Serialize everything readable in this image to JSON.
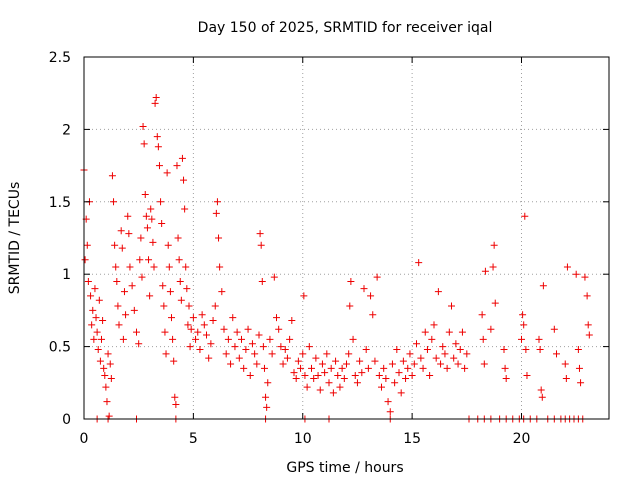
{
  "chart_data": {
    "type": "scatter",
    "title": "Day 150 of 2025, SRMTID for receiver iqal",
    "xlabel": "GPS time / hours",
    "ylabel": "SRMTID / TECUs",
    "xlim": [
      0,
      24
    ],
    "ylim": [
      0,
      2.5
    ],
    "x_ticks": [
      0,
      5,
      10,
      15,
      20
    ],
    "y_ticks": [
      0,
      0.5,
      1,
      1.5,
      2,
      2.5
    ],
    "x_tick_labels": [
      "0",
      "5",
      "10",
      "15",
      "20"
    ],
    "y_tick_labels": [
      "0",
      "0.5",
      "1",
      "1.5",
      "2",
      "2.5"
    ],
    "grid": true,
    "marker": "+",
    "color": "#ee0000",
    "series": [
      {
        "name": "SRMTID",
        "points": [
          [
            0.0,
            1.72
          ],
          [
            0.05,
            1.1
          ],
          [
            0.1,
            1.38
          ],
          [
            0.15,
            1.2
          ],
          [
            0.2,
            0.95
          ],
          [
            0.25,
            1.5
          ],
          [
            0.3,
            0.85
          ],
          [
            0.35,
            0.65
          ],
          [
            0.4,
            0.75
          ],
          [
            0.45,
            0.55
          ],
          [
            0.5,
            0.9
          ],
          [
            0.55,
            0.7
          ],
          [
            0.6,
            0.6
          ],
          [
            0.65,
            0.48
          ],
          [
            0.7,
            0.82
          ],
          [
            0.75,
            0.4
          ],
          [
            0.8,
            0.55
          ],
          [
            0.85,
            0.68
          ],
          [
            0.9,
            0.35
          ],
          [
            0.95,
            0.3
          ],
          [
            1.0,
            0.22
          ],
          [
            1.05,
            0.12
          ],
          [
            1.1,
            0.45
          ],
          [
            1.15,
            0.02
          ],
          [
            1.2,
            0.38
          ],
          [
            1.25,
            0.28
          ],
          [
            1.3,
            1.68
          ],
          [
            1.35,
            1.5
          ],
          [
            1.4,
            1.2
          ],
          [
            1.45,
            1.05
          ],
          [
            1.5,
            0.95
          ],
          [
            1.55,
            0.78
          ],
          [
            1.6,
            0.65
          ],
          [
            1.7,
            1.3
          ],
          [
            1.75,
            1.18
          ],
          [
            1.8,
            0.55
          ],
          [
            1.85,
            0.88
          ],
          [
            1.9,
            0.72
          ],
          [
            2.0,
            1.4
          ],
          [
            2.05,
            1.28
          ],
          [
            2.1,
            1.05
          ],
          [
            2.2,
            0.92
          ],
          [
            2.3,
            0.75
          ],
          [
            2.4,
            0.6
          ],
          [
            2.5,
            0.52
          ],
          [
            2.55,
            1.1
          ],
          [
            2.6,
            1.25
          ],
          [
            2.65,
            0.98
          ],
          [
            2.7,
            2.02
          ],
          [
            2.75,
            1.9
          ],
          [
            2.8,
            1.55
          ],
          [
            2.85,
            1.4
          ],
          [
            2.9,
            1.32
          ],
          [
            2.95,
            1.1
          ],
          [
            3.0,
            0.85
          ],
          [
            3.05,
            1.45
          ],
          [
            3.1,
            1.38
          ],
          [
            3.15,
            1.22
          ],
          [
            3.2,
            1.05
          ],
          [
            3.25,
            2.18
          ],
          [
            3.3,
            2.22
          ],
          [
            3.35,
            1.95
          ],
          [
            3.4,
            1.88
          ],
          [
            3.45,
            1.75
          ],
          [
            3.5,
            1.5
          ],
          [
            3.55,
            1.35
          ],
          [
            3.6,
            0.92
          ],
          [
            3.65,
            0.78
          ],
          [
            3.7,
            0.6
          ],
          [
            3.75,
            0.45
          ],
          [
            3.8,
            1.7
          ],
          [
            3.85,
            1.2
          ],
          [
            3.9,
            1.05
          ],
          [
            3.95,
            0.88
          ],
          [
            4.0,
            0.7
          ],
          [
            4.05,
            0.55
          ],
          [
            4.1,
            0.4
          ],
          [
            4.15,
            0.15
          ],
          [
            4.2,
            0.1
          ],
          [
            4.25,
            1.75
          ],
          [
            4.3,
            1.25
          ],
          [
            4.35,
            1.1
          ],
          [
            4.4,
            0.95
          ],
          [
            4.45,
            0.82
          ],
          [
            4.5,
            1.8
          ],
          [
            4.55,
            1.65
          ],
          [
            4.6,
            1.45
          ],
          [
            4.65,
            1.05
          ],
          [
            4.7,
            0.9
          ],
          [
            4.75,
            0.65
          ],
          [
            4.8,
            0.78
          ],
          [
            4.85,
            0.5
          ],
          [
            4.9,
            0.62
          ],
          [
            5.0,
            0.7
          ],
          [
            5.1,
            0.55
          ],
          [
            5.2,
            0.6
          ],
          [
            5.3,
            0.48
          ],
          [
            5.4,
            0.72
          ],
          [
            5.5,
            0.65
          ],
          [
            5.6,
            0.58
          ],
          [
            5.7,
            0.42
          ],
          [
            5.8,
            0.52
          ],
          [
            5.9,
            0.68
          ],
          [
            6.0,
            0.78
          ],
          [
            6.05,
            1.42
          ],
          [
            6.1,
            1.5
          ],
          [
            6.15,
            1.25
          ],
          [
            6.2,
            1.05
          ],
          [
            6.3,
            0.88
          ],
          [
            6.4,
            0.62
          ],
          [
            6.5,
            0.45
          ],
          [
            6.6,
            0.55
          ],
          [
            6.7,
            0.38
          ],
          [
            6.8,
            0.7
          ],
          [
            6.9,
            0.5
          ],
          [
            7.0,
            0.6
          ],
          [
            7.1,
            0.42
          ],
          [
            7.2,
            0.55
          ],
          [
            7.3,
            0.35
          ],
          [
            7.4,
            0.48
          ],
          [
            7.5,
            0.62
          ],
          [
            7.6,
            0.3
          ],
          [
            7.7,
            0.52
          ],
          [
            7.8,
            0.45
          ],
          [
            7.9,
            0.38
          ],
          [
            8.0,
            0.58
          ],
          [
            8.05,
            1.28
          ],
          [
            8.1,
            1.2
          ],
          [
            8.15,
            0.95
          ],
          [
            8.2,
            0.5
          ],
          [
            8.25,
            0.35
          ],
          [
            8.3,
            0.15
          ],
          [
            8.35,
            0.08
          ],
          [
            8.4,
            0.25
          ],
          [
            8.5,
            0.55
          ],
          [
            8.6,
            0.45
          ],
          [
            8.7,
            0.98
          ],
          [
            8.8,
            0.7
          ],
          [
            8.9,
            0.62
          ],
          [
            9.0,
            0.5
          ],
          [
            9.1,
            0.38
          ],
          [
            9.2,
            0.48
          ],
          [
            9.3,
            0.42
          ],
          [
            9.4,
            0.55
          ],
          [
            9.5,
            0.68
          ],
          [
            9.6,
            0.32
          ],
          [
            9.7,
            0.28
          ],
          [
            9.8,
            0.4
          ],
          [
            9.9,
            0.35
          ],
          [
            10.0,
            0.45
          ],
          [
            10.05,
            0.85
          ],
          [
            10.1,
            0.3
          ],
          [
            10.2,
            0.22
          ],
          [
            10.3,
            0.5
          ],
          [
            10.4,
            0.35
          ],
          [
            10.5,
            0.28
          ],
          [
            10.6,
            0.42
          ],
          [
            10.7,
            0.3
          ],
          [
            10.8,
            0.2
          ],
          [
            10.9,
            0.38
          ],
          [
            11.0,
            0.32
          ],
          [
            11.1,
            0.45
          ],
          [
            11.2,
            0.25
          ],
          [
            11.3,
            0.35
          ],
          [
            11.4,
            0.18
          ],
          [
            11.5,
            0.4
          ],
          [
            11.6,
            0.3
          ],
          [
            11.7,
            0.22
          ],
          [
            11.8,
            0.35
          ],
          [
            11.9,
            0.28
          ],
          [
            12.0,
            0.38
          ],
          [
            12.1,
            0.45
          ],
          [
            12.15,
            0.78
          ],
          [
            12.2,
            0.95
          ],
          [
            12.3,
            0.55
          ],
          [
            12.4,
            0.3
          ],
          [
            12.5,
            0.25
          ],
          [
            12.6,
            0.4
          ],
          [
            12.7,
            0.32
          ],
          [
            12.8,
            0.9
          ],
          [
            12.9,
            0.48
          ],
          [
            13.0,
            0.35
          ],
          [
            13.1,
            0.85
          ],
          [
            13.2,
            0.72
          ],
          [
            13.3,
            0.4
          ],
          [
            13.4,
            0.98
          ],
          [
            13.5,
            0.3
          ],
          [
            13.6,
            0.22
          ],
          [
            13.7,
            0.35
          ],
          [
            13.8,
            0.28
          ],
          [
            13.9,
            0.12
          ],
          [
            14.0,
            0.05
          ],
          [
            14.1,
            0.38
          ],
          [
            14.2,
            0.25
          ],
          [
            14.3,
            0.48
          ],
          [
            14.4,
            0.32
          ],
          [
            14.5,
            0.18
          ],
          [
            14.6,
            0.4
          ],
          [
            14.7,
            0.28
          ],
          [
            14.8,
            0.35
          ],
          [
            14.9,
            0.45
          ],
          [
            15.0,
            0.3
          ],
          [
            15.1,
            0.38
          ],
          [
            15.2,
            0.52
          ],
          [
            15.3,
            1.08
          ],
          [
            15.4,
            0.42
          ],
          [
            15.5,
            0.35
          ],
          [
            15.6,
            0.6
          ],
          [
            15.7,
            0.48
          ],
          [
            15.8,
            0.3
          ],
          [
            15.9,
            0.55
          ],
          [
            16.0,
            0.65
          ],
          [
            16.1,
            0.42
          ],
          [
            16.2,
            0.88
          ],
          [
            16.3,
            0.38
          ],
          [
            16.4,
            0.5
          ],
          [
            16.5,
            0.45
          ],
          [
            16.6,
            0.35
          ],
          [
            16.7,
            0.6
          ],
          [
            16.8,
            0.78
          ],
          [
            16.9,
            0.42
          ],
          [
            17.0,
            0.52
          ],
          [
            17.1,
            0.38
          ],
          [
            17.2,
            0.48
          ],
          [
            17.3,
            0.6
          ],
          [
            17.4,
            0.35
          ],
          [
            17.5,
            0.45
          ],
          [
            18.2,
            0.72
          ],
          [
            18.25,
            0.55
          ],
          [
            18.3,
            0.38
          ],
          [
            18.35,
            1.02
          ],
          [
            18.6,
            0.62
          ],
          [
            18.7,
            1.05
          ],
          [
            18.75,
            1.2
          ],
          [
            18.8,
            0.8
          ],
          [
            19.2,
            0.48
          ],
          [
            19.25,
            0.35
          ],
          [
            19.3,
            0.28
          ],
          [
            20.0,
            0.55
          ],
          [
            20.05,
            0.72
          ],
          [
            20.1,
            0.65
          ],
          [
            20.15,
            1.4
          ],
          [
            20.2,
            0.48
          ],
          [
            20.25,
            0.3
          ],
          [
            20.8,
            0.55
          ],
          [
            20.85,
            0.48
          ],
          [
            20.9,
            0.2
          ],
          [
            20.95,
            0.15
          ],
          [
            21.0,
            0.92
          ],
          [
            21.5,
            0.62
          ],
          [
            21.6,
            0.45
          ],
          [
            22.0,
            0.38
          ],
          [
            22.05,
            0.28
          ],
          [
            22.1,
            1.05
          ],
          [
            22.5,
            1.0
          ],
          [
            22.6,
            0.48
          ],
          [
            22.65,
            0.35
          ],
          [
            22.7,
            0.25
          ],
          [
            22.9,
            0.98
          ],
          [
            23.0,
            0.85
          ],
          [
            23.05,
            0.65
          ],
          [
            23.1,
            0.58
          ],
          [
            0.6,
            0.0
          ],
          [
            1.1,
            0.0
          ],
          [
            2.4,
            0.0
          ],
          [
            4.2,
            0.0
          ],
          [
            8.3,
            0.0
          ],
          [
            10.1,
            0.0
          ],
          [
            11.2,
            0.0
          ],
          [
            14.0,
            0.0
          ],
          [
            17.6,
            0.0
          ],
          [
            18.0,
            0.0
          ],
          [
            18.3,
            0.0
          ],
          [
            18.6,
            0.0
          ],
          [
            19.0,
            0.0
          ],
          [
            19.3,
            0.0
          ],
          [
            19.6,
            0.0
          ],
          [
            19.9,
            0.0
          ],
          [
            20.1,
            0.0
          ],
          [
            20.4,
            0.0
          ],
          [
            20.7,
            0.0
          ],
          [
            21.2,
            0.0
          ],
          [
            21.5,
            0.0
          ],
          [
            21.8,
            0.0
          ],
          [
            22.0,
            0.0
          ],
          [
            22.2,
            0.0
          ],
          [
            22.4,
            0.0
          ],
          [
            22.6,
            0.0
          ],
          [
            22.8,
            0.0
          ]
        ]
      }
    ]
  }
}
